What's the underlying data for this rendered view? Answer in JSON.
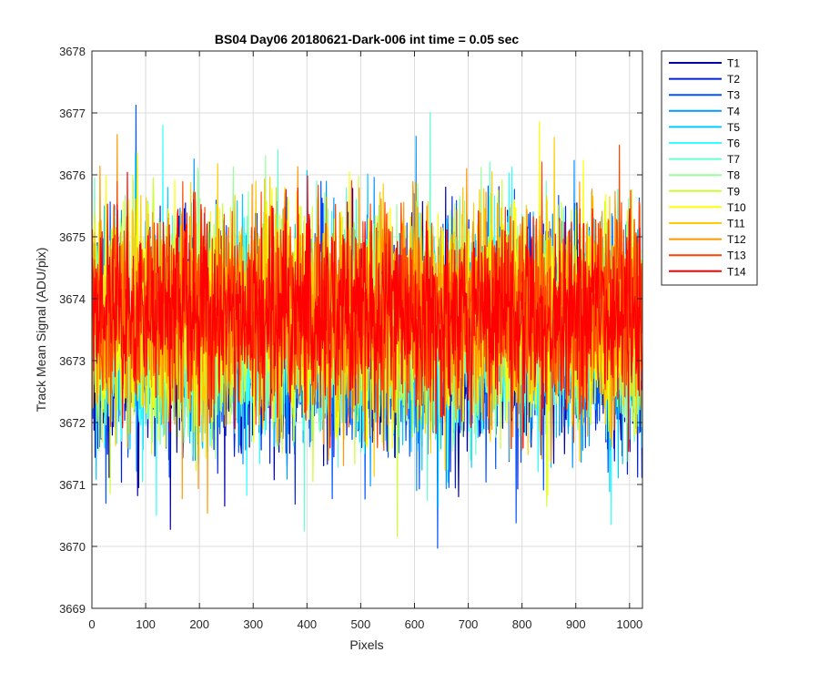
{
  "chart_data": {
    "type": "line",
    "title": "BS04 Day06 20180621-Dark-006 int time = 0.05 sec",
    "xlabel": "Pixels",
    "ylabel": "Track Mean Signal (ADU/pix)",
    "xlim": [
      0,
      1024
    ],
    "ylim": [
      3669,
      3678
    ],
    "xticks": [
      0,
      100,
      200,
      300,
      400,
      500,
      600,
      700,
      800,
      900,
      1000
    ],
    "yticks": [
      3669,
      3670,
      3671,
      3672,
      3673,
      3674,
      3675,
      3676,
      3677,
      3678
    ],
    "grid": true,
    "legend_position": "outside-top-right",
    "n_points": 1024,
    "series": [
      {
        "name": "T1",
        "color": "#0000AA",
        "mean": 3673.25,
        "noise_sd": 0.85
      },
      {
        "name": "T2",
        "color": "#0022DD",
        "mean": 3673.3,
        "noise_sd": 0.85
      },
      {
        "name": "T3",
        "color": "#0055FF",
        "mean": 3673.35,
        "noise_sd": 0.85
      },
      {
        "name": "T4",
        "color": "#0099FF",
        "mean": 3673.4,
        "noise_sd": 0.85
      },
      {
        "name": "T5",
        "color": "#00CCFF",
        "mean": 3673.45,
        "noise_sd": 0.85
      },
      {
        "name": "T6",
        "color": "#33FFFF",
        "mean": 3673.5,
        "noise_sd": 0.85
      },
      {
        "name": "T7",
        "color": "#66FFCC",
        "mean": 3673.55,
        "noise_sd": 0.85
      },
      {
        "name": "T8",
        "color": "#99FF99",
        "mean": 3673.6,
        "noise_sd": 0.85
      },
      {
        "name": "T9",
        "color": "#CCFF33",
        "mean": 3673.65,
        "noise_sd": 0.85
      },
      {
        "name": "T10",
        "color": "#FFFF00",
        "mean": 3673.7,
        "noise_sd": 0.85
      },
      {
        "name": "T11",
        "color": "#FFCC00",
        "mean": 3673.75,
        "noise_sd": 0.85
      },
      {
        "name": "T12",
        "color": "#FF9900",
        "mean": 3673.8,
        "noise_sd": 0.85
      },
      {
        "name": "T13",
        "color": "#FF4400",
        "mean": 3673.8,
        "noise_sd": 0.8
      },
      {
        "name": "T14",
        "color": "#FF0000",
        "mean": 3673.75,
        "noise_sd": 0.75
      }
    ]
  }
}
